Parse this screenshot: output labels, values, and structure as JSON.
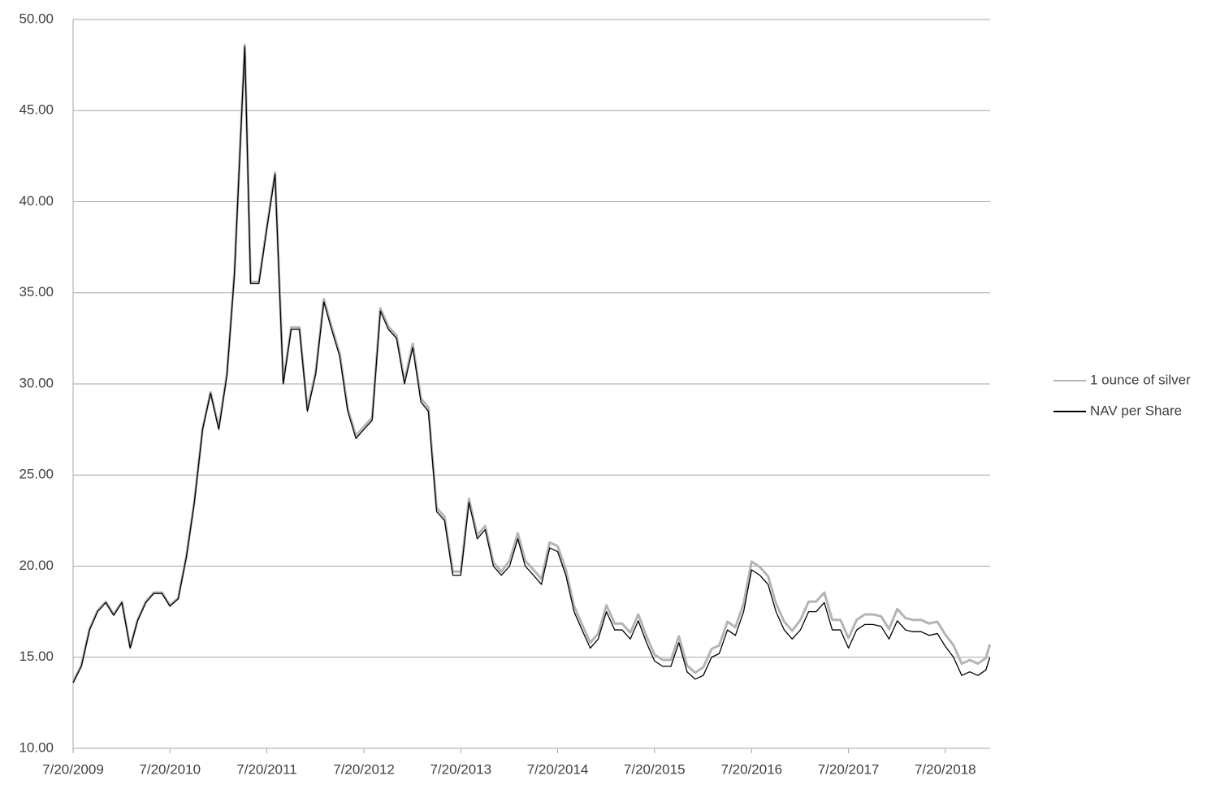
{
  "chart_data": {
    "type": "line",
    "x": [
      "2009-07-20",
      "2009-08-20",
      "2009-09-20",
      "2009-10-20",
      "2009-11-20",
      "2009-12-20",
      "2010-01-20",
      "2010-02-20",
      "2010-03-20",
      "2010-04-20",
      "2010-05-20",
      "2010-06-20",
      "2010-07-20",
      "2010-08-20",
      "2010-09-20",
      "2010-10-20",
      "2010-11-20",
      "2010-12-20",
      "2011-01-20",
      "2011-02-20",
      "2011-03-20",
      "2011-04-20",
      "2011-04-28",
      "2011-05-20",
      "2011-06-20",
      "2011-07-20",
      "2011-08-20",
      "2011-09-20",
      "2011-10-20",
      "2011-11-20",
      "2011-12-20",
      "2012-01-20",
      "2012-02-20",
      "2012-03-20",
      "2012-04-20",
      "2012-05-20",
      "2012-06-20",
      "2012-07-20",
      "2012-08-20",
      "2012-09-20",
      "2012-10-20",
      "2012-11-20",
      "2012-12-20",
      "2013-01-20",
      "2013-02-20",
      "2013-03-20",
      "2013-04-20",
      "2013-05-20",
      "2013-06-20",
      "2013-07-20",
      "2013-08-20",
      "2013-09-20",
      "2013-10-20",
      "2013-11-20",
      "2013-12-20",
      "2014-01-20",
      "2014-02-20",
      "2014-03-20",
      "2014-04-20",
      "2014-05-20",
      "2014-06-20",
      "2014-07-20",
      "2014-08-20",
      "2014-09-20",
      "2014-10-20",
      "2014-11-20",
      "2014-12-20",
      "2015-01-20",
      "2015-02-20",
      "2015-03-20",
      "2015-04-20",
      "2015-05-20",
      "2015-06-20",
      "2015-07-20",
      "2015-08-20",
      "2015-09-20",
      "2015-10-20",
      "2015-11-20",
      "2015-12-20",
      "2016-01-20",
      "2016-02-20",
      "2016-03-20",
      "2016-04-20",
      "2016-05-20",
      "2016-06-20",
      "2016-07-20",
      "2016-08-20",
      "2016-09-20",
      "2016-10-20",
      "2016-11-20",
      "2016-12-20",
      "2017-01-20",
      "2017-02-20",
      "2017-03-20",
      "2017-04-20",
      "2017-05-20",
      "2017-06-20",
      "2017-07-20",
      "2017-08-20",
      "2017-09-20",
      "2017-10-20",
      "2017-11-20",
      "2017-12-20",
      "2018-01-20",
      "2018-02-20",
      "2018-03-20",
      "2018-04-20",
      "2018-05-20",
      "2018-06-20",
      "2018-07-20",
      "2018-08-20",
      "2018-09-20",
      "2018-10-20",
      "2018-11-20",
      "2018-12-20",
      "2019-01-04"
    ],
    "series": [
      {
        "name": "1 ounce of silver",
        "color": "#b4b4b4",
        "values": [
          13.65,
          14.55,
          16.55,
          17.55,
          18.05,
          17.35,
          18.05,
          15.55,
          17.05,
          18.05,
          18.55,
          18.55,
          17.85,
          18.25,
          20.55,
          23.55,
          27.55,
          29.55,
          27.6,
          30.6,
          36.1,
          46.1,
          48.6,
          35.6,
          35.6,
          38.6,
          41.6,
          30.1,
          33.1,
          33.1,
          28.6,
          30.65,
          34.65,
          33.15,
          31.65,
          28.65,
          27.15,
          27.65,
          28.15,
          34.15,
          33.15,
          32.65,
          30.15,
          32.2,
          29.2,
          28.7,
          23.2,
          22.7,
          19.7,
          19.7,
          23.7,
          21.7,
          22.2,
          20.2,
          19.7,
          20.3,
          21.8,
          20.3,
          19.8,
          19.3,
          21.3,
          21.1,
          19.8,
          17.8,
          16.8,
          15.8,
          16.3,
          17.85,
          16.85,
          16.85,
          16.35,
          17.35,
          16.15,
          15.15,
          14.85,
          14.85,
          16.15,
          14.55,
          14.15,
          14.45,
          15.45,
          15.65,
          16.95,
          16.65,
          17.95,
          20.25,
          19.95,
          19.45,
          17.95,
          16.95,
          16.45,
          17.05,
          18.05,
          18.05,
          18.55,
          17.05,
          17.05,
          16.05,
          17.05,
          17.35,
          17.35,
          17.25,
          16.55,
          17.65,
          17.15,
          17.05,
          17.05,
          16.85,
          16.95,
          16.25,
          15.65,
          14.65,
          14.85,
          14.65,
          14.95,
          15.7
        ]
      },
      {
        "name": "NAV per Share",
        "color": "#000000",
        "values": [
          13.6,
          14.5,
          16.5,
          17.5,
          18.0,
          17.3,
          18.0,
          15.5,
          17.0,
          18.0,
          18.5,
          18.5,
          17.8,
          18.2,
          20.5,
          23.5,
          27.5,
          29.5,
          27.5,
          30.5,
          36.0,
          46.0,
          48.5,
          35.5,
          35.5,
          38.5,
          41.5,
          30.0,
          33.0,
          33.0,
          28.5,
          30.5,
          34.5,
          33.0,
          31.5,
          28.5,
          27.0,
          27.5,
          28.0,
          34.0,
          33.0,
          32.5,
          30.0,
          32.0,
          29.0,
          28.5,
          23.0,
          22.5,
          19.5,
          19.5,
          23.5,
          21.5,
          22.0,
          20.0,
          19.5,
          20.0,
          21.5,
          20.0,
          19.5,
          19.0,
          21.0,
          20.8,
          19.5,
          17.5,
          16.5,
          15.5,
          16.0,
          17.5,
          16.5,
          16.5,
          16.0,
          17.0,
          15.8,
          14.8,
          14.5,
          14.5,
          15.8,
          14.2,
          13.8,
          14.0,
          15.0,
          15.2,
          16.5,
          16.2,
          17.5,
          19.8,
          19.5,
          19.0,
          17.5,
          16.5,
          16.0,
          16.5,
          17.5,
          17.5,
          18.0,
          16.5,
          16.5,
          15.5,
          16.5,
          16.8,
          16.8,
          16.7,
          16.0,
          17.0,
          16.5,
          16.4,
          16.4,
          16.2,
          16.3,
          15.6,
          15.0,
          14.0,
          14.2,
          14.0,
          14.3,
          15.0
        ]
      }
    ],
    "xlim": [
      "2009-07-20",
      "2019-01-05"
    ],
    "xticks": [
      {
        "value": "2009-07-20",
        "label": "7/20/2009"
      },
      {
        "value": "2010-07-20",
        "label": "7/20/2010"
      },
      {
        "value": "2011-07-20",
        "label": "7/20/2011"
      },
      {
        "value": "2012-07-20",
        "label": "7/20/2012"
      },
      {
        "value": "2013-07-20",
        "label": "7/20/2013"
      },
      {
        "value": "2014-07-20",
        "label": "7/20/2014"
      },
      {
        "value": "2015-07-20",
        "label": "7/20/2015"
      },
      {
        "value": "2016-07-20",
        "label": "7/20/2016"
      },
      {
        "value": "2017-07-20",
        "label": "7/20/2017"
      },
      {
        "value": "2018-07-20",
        "label": "7/20/2018"
      }
    ],
    "ylim": [
      10,
      50
    ],
    "yticks": [
      {
        "value": 10,
        "label": "10.00"
      },
      {
        "value": 15,
        "label": "15.00"
      },
      {
        "value": 20,
        "label": "20.00"
      },
      {
        "value": 25,
        "label": "25.00"
      },
      {
        "value": 30,
        "label": "30.00"
      },
      {
        "value": 35,
        "label": "35.00"
      },
      {
        "value": 40,
        "label": "40.00"
      },
      {
        "value": 45,
        "label": "45.00"
      },
      {
        "value": 50,
        "label": "50.00"
      }
    ],
    "grid": true,
    "legend": "right"
  }
}
